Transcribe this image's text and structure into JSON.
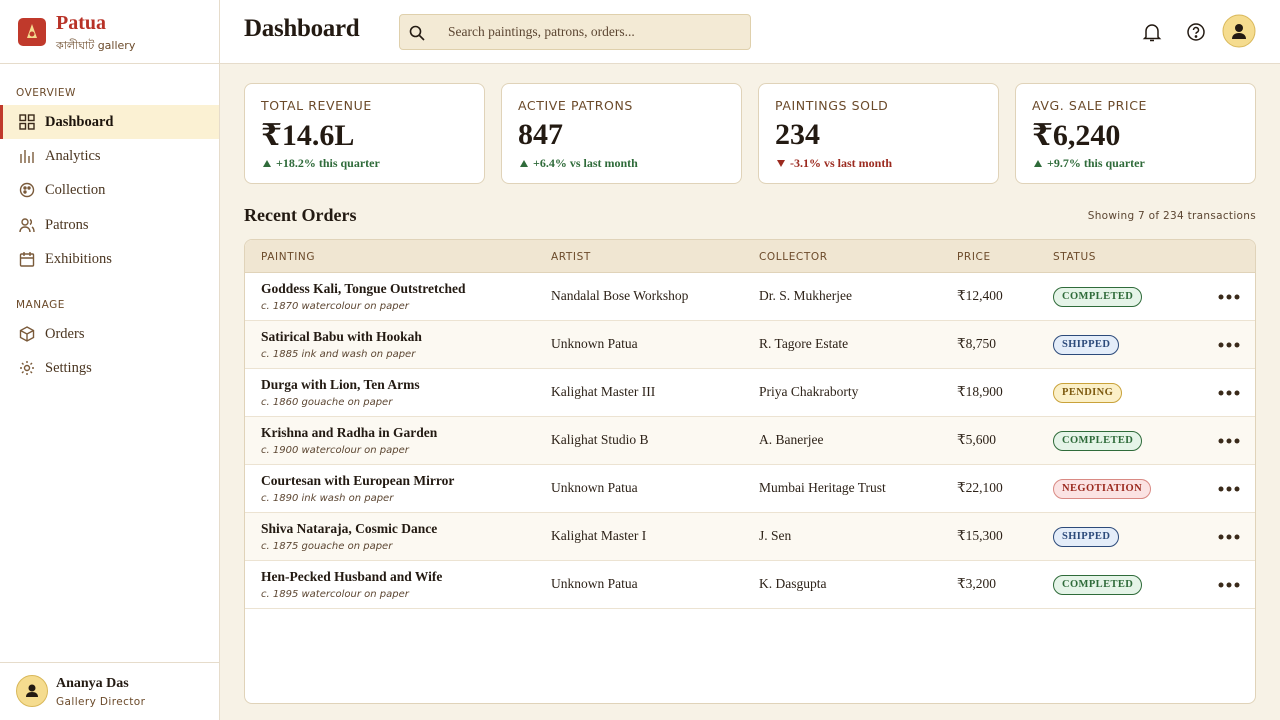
{
  "brand": {
    "name": "Patua",
    "subtitle": "কালীঘাট gallery"
  },
  "header": {
    "title": "Dashboard",
    "search_placeholder": "Search paintings, patrons, orders..."
  },
  "nav": {
    "sections": [
      {
        "title": "OVERVIEW",
        "items": [
          "Dashboard",
          "Analytics",
          "Collection",
          "Patrons",
          "Exhibitions"
        ]
      },
      {
        "title": "MANAGE",
        "items": [
          "Orders",
          "Settings"
        ]
      }
    ]
  },
  "user": {
    "name": "Ananya Das",
    "role": "Gallery Director"
  },
  "stats": [
    {
      "label": "TOTAL REVENUE",
      "value": "₹14.6L",
      "delta": "+18.2% this quarter",
      "trend": "up"
    },
    {
      "label": "ACTIVE PATRONS",
      "value": "847",
      "delta": "+6.4% vs last month",
      "trend": "up"
    },
    {
      "label": "PAINTINGS SOLD",
      "value": "234",
      "delta": "-3.1% vs last month",
      "trend": "down"
    },
    {
      "label": "AVG. SALE PRICE",
      "value": "₹6,240",
      "delta": "+9.7% this quarter",
      "trend": "up"
    }
  ],
  "orders": {
    "title": "Recent Orders",
    "summary": "Showing 7 of 234 transactions",
    "columns": [
      "PAINTING",
      "ARTIST",
      "COLLECTOR",
      "PRICE",
      "STATUS"
    ],
    "rows": [
      {
        "painting": "Goddess Kali, Tongue Outstretched",
        "meta": "c. 1870 watercolour on paper",
        "artist": "Nandalal Bose Workshop",
        "collector": "Dr. S. Mukherjee",
        "price": "₹12,400",
        "status": "COMPLETED"
      },
      {
        "painting": "Satirical Babu with Hookah",
        "meta": "c. 1885 ink and wash on paper",
        "artist": "Unknown Patua",
        "collector": "R. Tagore Estate",
        "price": "₹8,750",
        "status": "SHIPPED"
      },
      {
        "painting": "Durga with Lion, Ten Arms",
        "meta": "c. 1860 gouache on paper",
        "artist": "Kalighat Master III",
        "collector": "Priya Chakraborty",
        "price": "₹18,900",
        "status": "PENDING"
      },
      {
        "painting": "Krishna and Radha in Garden",
        "meta": "c. 1900 watercolour on paper",
        "artist": "Kalighat Studio B",
        "collector": "A. Banerjee",
        "price": "₹5,600",
        "status": "COMPLETED"
      },
      {
        "painting": "Courtesan with European Mirror",
        "meta": "c. 1890 ink wash on paper",
        "artist": "Unknown Patua",
        "collector": "Mumbai Heritage Trust",
        "price": "₹22,100",
        "status": "NEGOTIATION"
      },
      {
        "painting": "Shiva Nataraja, Cosmic Dance",
        "meta": "c. 1875 gouache on paper",
        "artist": "Kalighat Master I",
        "collector": "J. Sen",
        "price": "₹15,300",
        "status": "SHIPPED"
      },
      {
        "painting": "Hen-Pecked Husband and Wife",
        "meta": "c. 1895 watercolour on paper",
        "artist": "Unknown Patua",
        "collector": "K. Dasgupta",
        "price": "₹3,200",
        "status": "COMPLETED"
      }
    ]
  }
}
